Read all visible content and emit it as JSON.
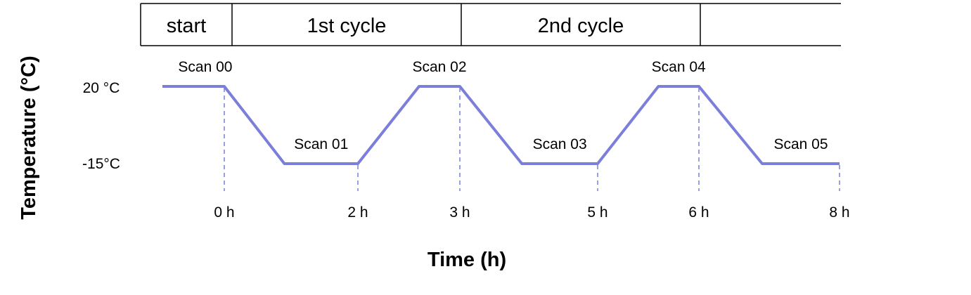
{
  "phase_header": {
    "segments": [
      "start",
      "1st cycle",
      "2nd cycle",
      ""
    ]
  },
  "chart_data": {
    "type": "line",
    "xlabel": "Time (h)",
    "ylabel": "Temperature (°C)",
    "y_tick_labels": [
      "20 °C",
      "-15°C"
    ],
    "y_ticks": [
      20,
      -15
    ],
    "x_tick_labels": [
      "0 h",
      "2 h",
      "3 h",
      "5 h",
      "6 h",
      "8 h"
    ],
    "x_ticks": [
      0,
      2,
      3,
      5,
      6,
      8
    ],
    "series": [
      {
        "color": "#7b7fd9",
        "points": [
          {
            "x": -1.3,
            "y": 20
          },
          {
            "x": 0,
            "y": 20
          },
          {
            "x": 0.9,
            "y": -15
          },
          {
            "x": 2,
            "y": -15
          },
          {
            "x": 2.6,
            "y": 20
          },
          {
            "x": 3,
            "y": 20
          },
          {
            "x": 3.9,
            "y": -15
          },
          {
            "x": 5,
            "y": -15
          },
          {
            "x": 5.6,
            "y": 20
          },
          {
            "x": 6,
            "y": 20
          },
          {
            "x": 6.9,
            "y": -15
          },
          {
            "x": 8,
            "y": -15
          }
        ]
      }
    ],
    "annotations": [
      {
        "text": "Scan 00",
        "x": -0.4,
        "y": 20
      },
      {
        "text": "Scan 01",
        "x": 1.45,
        "y": -15
      },
      {
        "text": "Scan 02",
        "x": 2.8,
        "y": 20
      },
      {
        "text": "Scan 03",
        "x": 4.45,
        "y": -15
      },
      {
        "text": "Scan 04",
        "x": 5.8,
        "y": 20
      },
      {
        "text": "Scan 05",
        "x": 7.45,
        "y": -15
      }
    ],
    "dashed_guides_at_x": [
      0,
      2,
      3,
      5,
      6,
      8
    ],
    "ylim": [
      -15,
      20
    ],
    "grid": false,
    "legend": "none"
  }
}
